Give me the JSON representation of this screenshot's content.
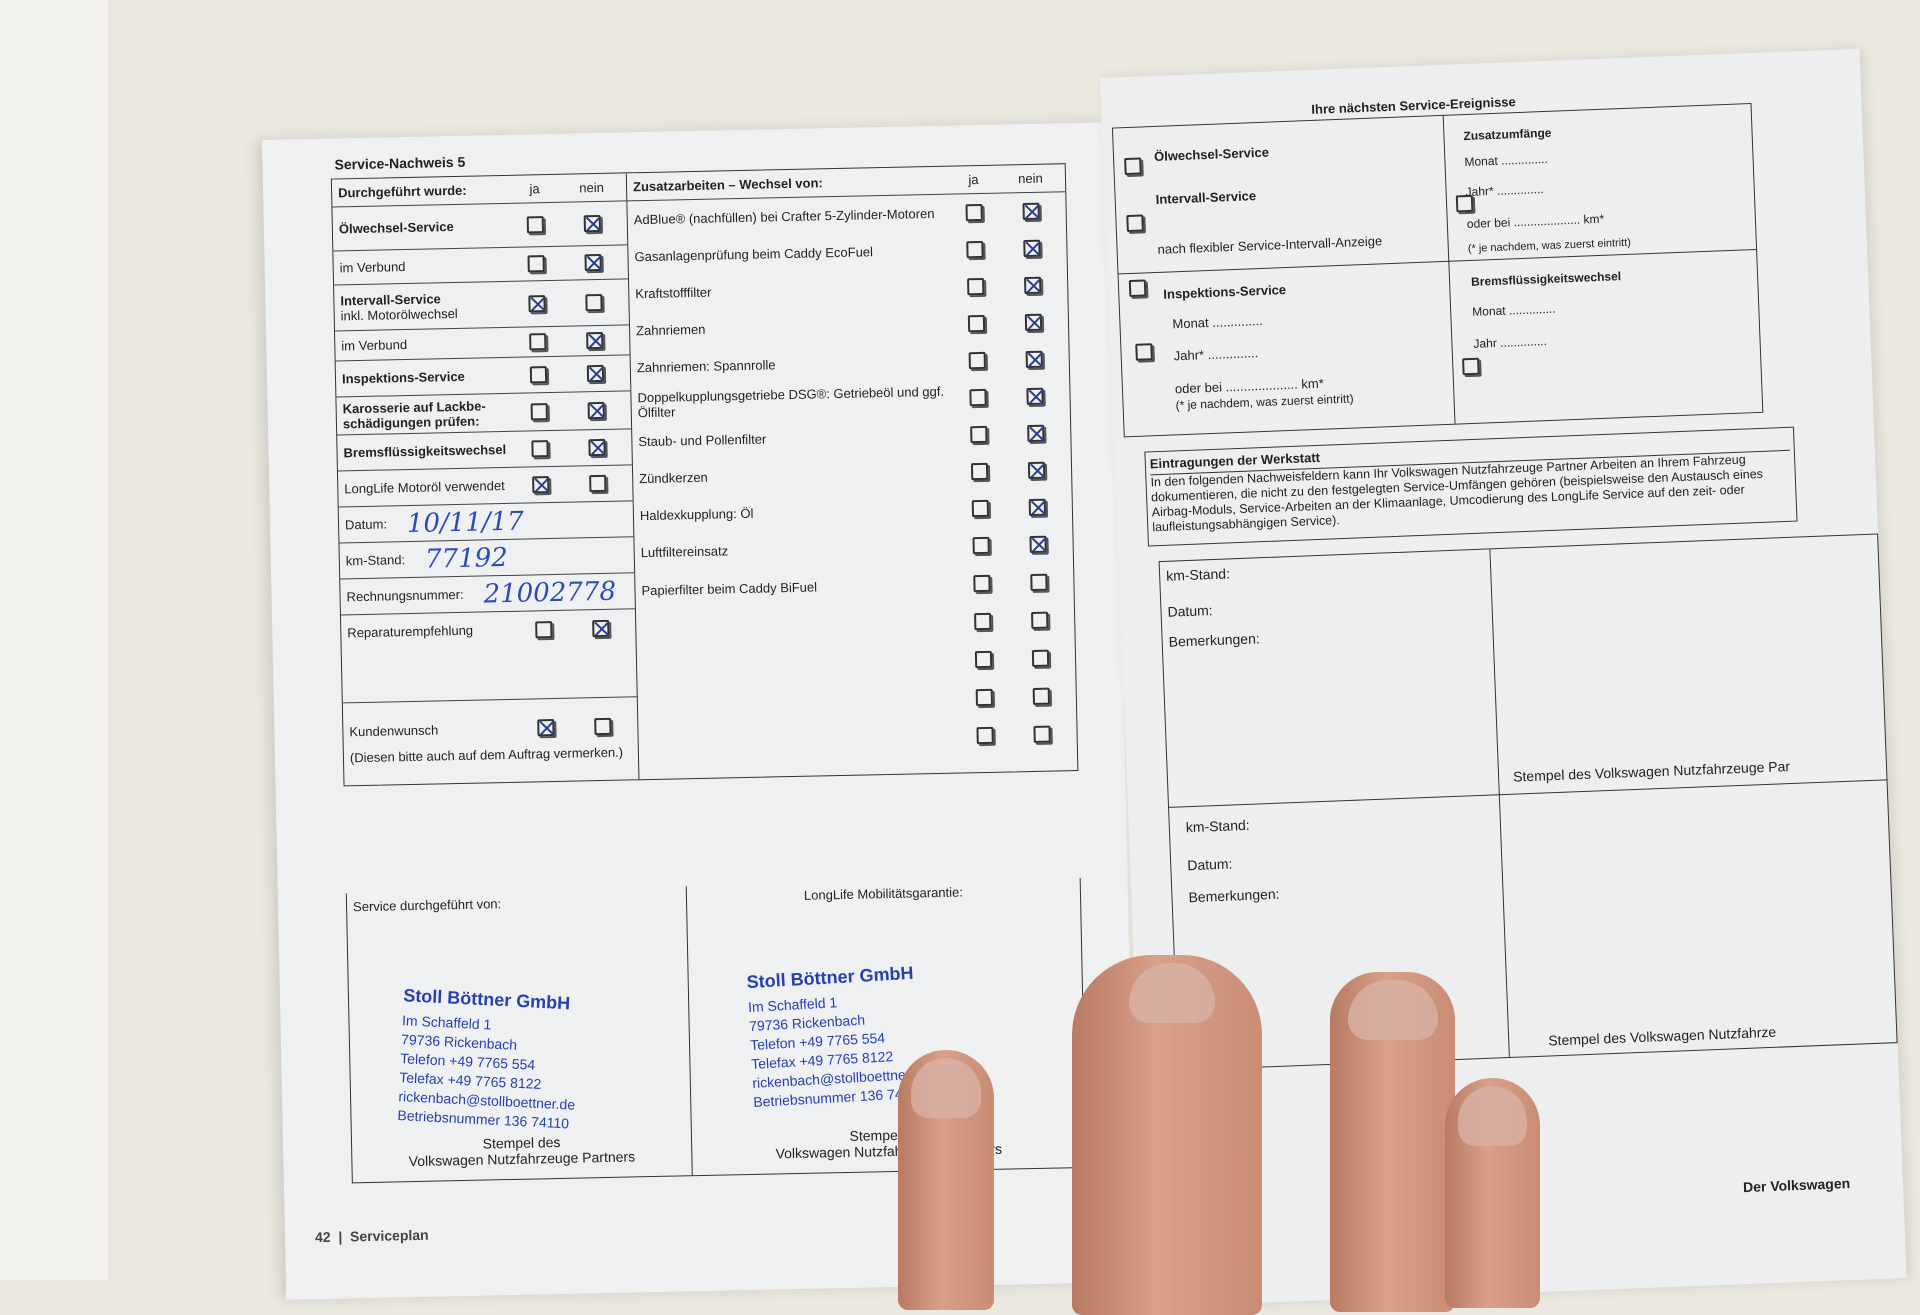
{
  "left_page": {
    "title": "Service-Nachweis 5",
    "left_header": {
      "label": "Durchgeführt wurde:",
      "ja": "ja",
      "nein": "nein"
    },
    "left_rows": [
      {
        "label": "Ölwechsel-Service",
        "bold": true,
        "ja": false,
        "nein": true
      },
      {
        "label": "im Verbund",
        "bold": false,
        "ja": false,
        "nein": true
      },
      {
        "label": "Intervall-Service",
        "sub": "inkl. Motorölwechsel",
        "bold": true,
        "ja": true,
        "nein": false
      },
      {
        "label": "im Verbund",
        "bold": false,
        "ja": false,
        "nein": true
      },
      {
        "label": "Inspektions-Service",
        "bold": true,
        "ja": false,
        "nein": true
      },
      {
        "label": "Karosserie auf Lackbe-schädigungen prüfen:",
        "bold": true,
        "ja": false,
        "nein": true
      },
      {
        "label": "Bremsflüssigkeitswechsel",
        "bold": true,
        "ja": false,
        "nein": true
      },
      {
        "label": "LongLife Motoröl verwendet",
        "bold": false,
        "ja": true,
        "nein": false
      }
    ],
    "fields": [
      {
        "label": "Datum:",
        "value": "10/11/17"
      },
      {
        "label": "km-Stand:",
        "value": "77192"
      },
      {
        "label": "Rechnungsnummer:",
        "value": "21002778"
      }
    ],
    "reparatur": {
      "label": "Reparaturempfehlung",
      "ja": false,
      "nein": true
    },
    "kundenwunsch": {
      "label": "Kundenwunsch",
      "ja": true,
      "nein": false,
      "note": "(Diesen bitte auch auf dem Auftrag vermerken.)"
    },
    "right_header": {
      "label": "Zusatzarbeiten – Wechsel von:",
      "ja": "ja",
      "nein": "nein"
    },
    "right_rows": [
      {
        "label": "AdBlue® (nachfüllen) bei Crafter 5-Zylinder-Motoren",
        "ja": false,
        "nein": true
      },
      {
        "label": "Gasanlagenprüfung beim Caddy EcoFuel",
        "ja": false,
        "nein": true
      },
      {
        "label": "Kraftstofffilter",
        "ja": false,
        "nein": true
      },
      {
        "label": "Zahnriemen",
        "ja": false,
        "nein": true
      },
      {
        "label": "Zahnriemen: Spannrolle",
        "ja": false,
        "nein": true
      },
      {
        "label": "Doppelkupplungsgetriebe DSG®: Getriebeöl und ggf. Ölfilter",
        "ja": false,
        "nein": true
      },
      {
        "label": "Staub- und Pollenfilter",
        "ja": false,
        "nein": true
      },
      {
        "label": "Zündkerzen",
        "ja": false,
        "nein": true
      },
      {
        "label": "Haldexkupplung: Öl",
        "ja": false,
        "nein": true
      },
      {
        "label": "Luftfiltereinsatz",
        "ja": false,
        "nein": true
      },
      {
        "label": "Papierfilter beim Caddy BiFuel",
        "ja": false,
        "nein": false
      },
      {
        "label": "",
        "ja": false,
        "nein": false
      },
      {
        "label": "",
        "ja": false,
        "nein": false
      },
      {
        "label": "",
        "ja": false,
        "nein": false
      },
      {
        "label": "",
        "ja": false,
        "nein": false
      }
    ],
    "service_by": "Service durchgeführt von:",
    "mobility": "LongLife Mobilitätsgarantie:",
    "stamp_caption_1": "Stempel des",
    "stamp_caption_2": "Volkswagen Nutzfahrzeuge Partners",
    "stamp": {
      "name": "Stoll Böttner GmbH",
      "lines": [
        "Im Schaffeld 1",
        "79736 Rickenbach",
        "Telefon +49 7765 554",
        "Telefax +49 7765 8122",
        "rickenbach@stollboettner.de",
        "Betriebsnummer 136 74110"
      ]
    },
    "page_number": "42",
    "section": "Serviceplan"
  },
  "right_page": {
    "title": "Ihre nächsten Service-Ereignisse",
    "oil": "Ölwechsel-Service",
    "interval": "Intervall-Service",
    "flex": "nach flexibler Service-Intervall-Anzeige",
    "inspection": "Inspektions-Service",
    "zusatz": "Zusatzumfänge",
    "brake": "Bremsflüssigkeitswechsel",
    "monat": "Monat ..............",
    "jahr_star": "Jahr* ..............",
    "jahr": "Jahr ..............",
    "oder_bei": "oder bei .................... km*",
    "footnote": "(* je nachdem, was zuerst eintritt)",
    "workshop_title": "Eintragungen der Werkstatt",
    "workshop_text": "In den folgenden Nachweisfeldern kann Ihr Volkswagen Nutzfahrzeuge Partner Arbeiten an Ihrem Fahrzeug dokumentieren, die nicht zu den festgelegten Service-Umfängen gehören (beispielsweise den Austausch eines Airbag-Moduls, Service-Arbeiten an der Klimaanlage, Umcodierung des LongLife Service auf den zeit- oder laufleistungsabhängigen Service).",
    "km": "km-Stand:",
    "datum": "Datum:",
    "bemerkungen": "Bemerkungen:",
    "stamp_1": "Stempel des Volkswagen Nutzfahrzeuge Par",
    "stamp_2": "Stempel des Volkswagen Nutzfahrze",
    "footer": "Der Volkswagen"
  },
  "colors": {
    "ink": "#2c49b8",
    "stamp": "#2740b0",
    "paper": "#eef0f2",
    "background": "#ebe9df",
    "skin": "#c98c74"
  }
}
